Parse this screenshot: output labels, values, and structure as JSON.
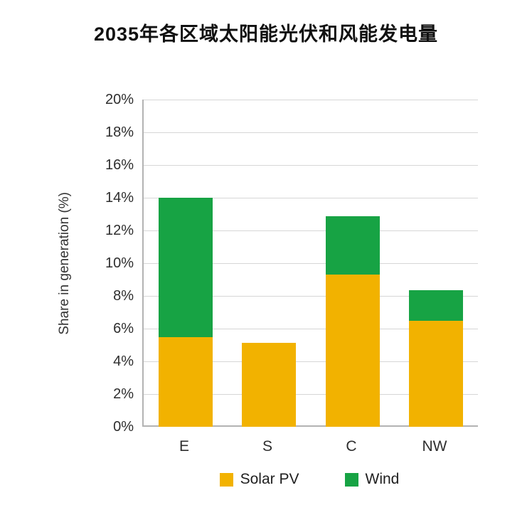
{
  "title": "2035年各区域太阳能光伏和风能发电量",
  "chart_data": {
    "type": "bar",
    "stacked": true,
    "title": "2035年各区域太阳能光伏和风能发电量",
    "xlabel": "",
    "ylabel": "Share in generation (%)",
    "categories": [
      "E",
      "S",
      "C",
      "NW"
    ],
    "series": [
      {
        "name": "Solar PV",
        "color": "#F2B200",
        "values": [
          5.5,
          5.15,
          9.3,
          6.5
        ]
      },
      {
        "name": "Wind",
        "color": "#17A344",
        "values": [
          8.5,
          0,
          3.55,
          1.85
        ]
      }
    ],
    "totals": [
      14.0,
      5.15,
      12.85,
      8.35
    ],
    "ylim": [
      0,
      20
    ],
    "ytick_step": 2,
    "ytick_labels": [
      "0%",
      "2%",
      "4%",
      "6%",
      "8%",
      "10%",
      "12%",
      "14%",
      "16%",
      "18%",
      "20%"
    ],
    "grid": true,
    "legend_position": "bottom"
  }
}
